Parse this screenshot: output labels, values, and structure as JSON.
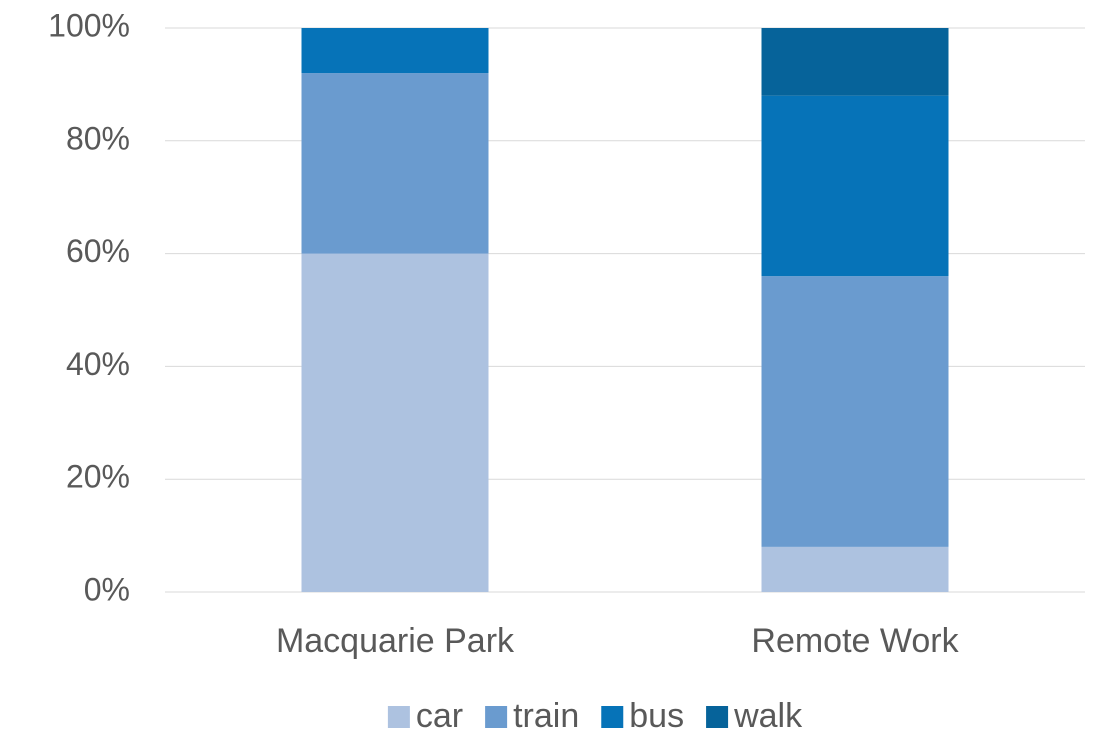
{
  "chart_data": {
    "type": "stacked_bar",
    "categories": [
      "Macquarie Park",
      "Remote Work"
    ],
    "series": [
      {
        "name": "car",
        "color": "#adc2e0",
        "values": [
          60,
          8
        ]
      },
      {
        "name": "train",
        "color": "#6a9bcf",
        "values": [
          32,
          48
        ]
      },
      {
        "name": "bus",
        "color": "#0673b8",
        "values": [
          8,
          32
        ]
      },
      {
        "name": "walk",
        "color": "#06639a",
        "values": [
          0,
          12
        ]
      }
    ],
    "ylim": [
      0,
      100
    ],
    "yticks": [
      {
        "value": 0,
        "label": "0%"
      },
      {
        "value": 20,
        "label": "20%"
      },
      {
        "value": 40,
        "label": "40%"
      },
      {
        "value": 60,
        "label": "60%"
      },
      {
        "value": 80,
        "label": "80%"
      },
      {
        "value": 100,
        "label": "100%"
      }
    ],
    "grid": true,
    "legend": "bottom"
  }
}
